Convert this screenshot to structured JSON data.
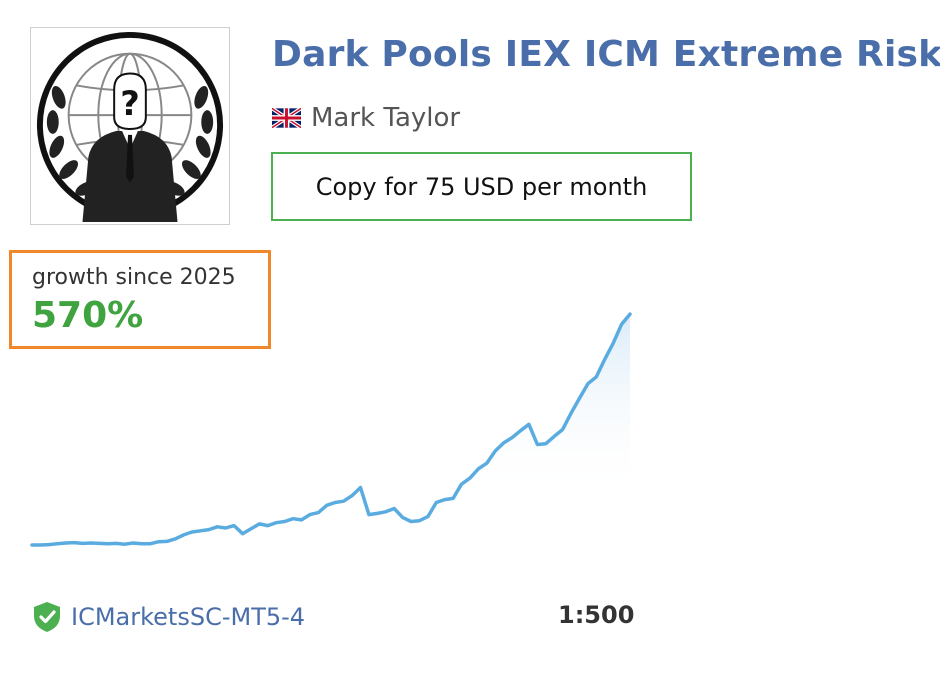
{
  "signal": {
    "title": "Dark Pools IEX ICM Extreme Risk",
    "author": "Mark Taylor",
    "author_flag": "uk-flag-icon",
    "avatar": "anonymous-suit-globe-logo",
    "copy_button_label": "Copy for 75 USD per month"
  },
  "growth": {
    "label": "growth since 2025",
    "value": "570%"
  },
  "chart_data": {
    "type": "area",
    "title": "",
    "xlabel": "",
    "ylabel": "",
    "x_start": 0,
    "x_end": 100,
    "ylim": [
      0,
      580
    ],
    "series": [
      {
        "values": [
          0,
          0,
          1,
          3,
          5,
          6,
          4,
          5,
          4,
          3,
          4,
          2,
          5,
          3,
          3,
          8,
          9,
          15,
          25,
          32,
          35,
          38,
          45,
          42,
          48,
          28,
          40,
          52,
          48,
          55,
          58,
          65,
          62,
          75,
          80,
          98,
          105,
          108,
          122,
          142,
          75,
          78,
          82,
          90,
          68,
          58,
          60,
          70,
          105,
          112,
          115,
          150,
          165,
          188,
          202,
          232,
          252,
          265,
          282,
          298,
          248,
          250,
          268,
          285,
          325,
          362,
          398,
          415,
          458,
          498,
          545,
          570
        ]
      }
    ],
    "grid": false,
    "legend": "none",
    "colors": {
      "line": "#5aace0",
      "fill": "#e8f2fb"
    }
  },
  "footer": {
    "broker_icon": "verified-shield-icon",
    "broker": "ICMarketsSC-MT5-4",
    "leverage": "1:500"
  },
  "colors": {
    "title": "#4a6ea9",
    "button_border": "#4caf50",
    "growth_border": "#f0882a",
    "growth_value": "#3fa33f"
  }
}
